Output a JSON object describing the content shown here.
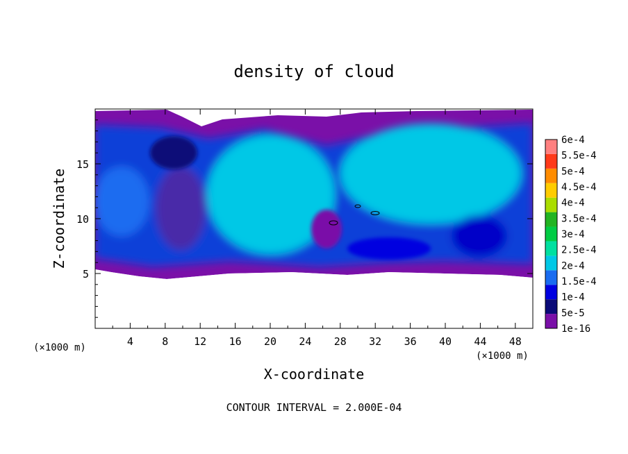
{
  "chart_data": {
    "type": "heatmap",
    "title": "density of cloud",
    "xlabel": "X-coordinate",
    "ylabel": "Z-coordinate",
    "x_unit_left": "(×1000 m)",
    "x_unit_right": "(×1000 m)",
    "xlim": [
      0,
      50
    ],
    "ylim": [
      0,
      20
    ],
    "x_ticks": [
      4,
      8,
      12,
      16,
      20,
      24,
      28,
      32,
      36,
      40,
      44,
      48
    ],
    "y_ticks": [
      5,
      10,
      15
    ],
    "footer": "CONTOUR INTERVAL = 2.000E-04",
    "colorbar": {
      "labels": [
        "6e-4",
        "5.5e-4",
        "5e-4",
        "4.5e-4",
        "4e-4",
        "3.5e-4",
        "3e-4",
        "2.5e-4",
        "2e-4",
        "1.5e-4",
        "1e-4",
        "5e-5",
        "1e-16"
      ],
      "colors": [
        "#7a10a8",
        "#0a0a78",
        "#0000e0",
        "#1a6cf0",
        "#00c8e6",
        "#00e0a0",
        "#00cc44",
        "#22b422",
        "#aadd00",
        "#ffcc00",
        "#ff8c00",
        "#ff3a1a",
        "#ff8080"
      ]
    },
    "cloud_band_z": [
      5,
      19.5
    ]
  }
}
